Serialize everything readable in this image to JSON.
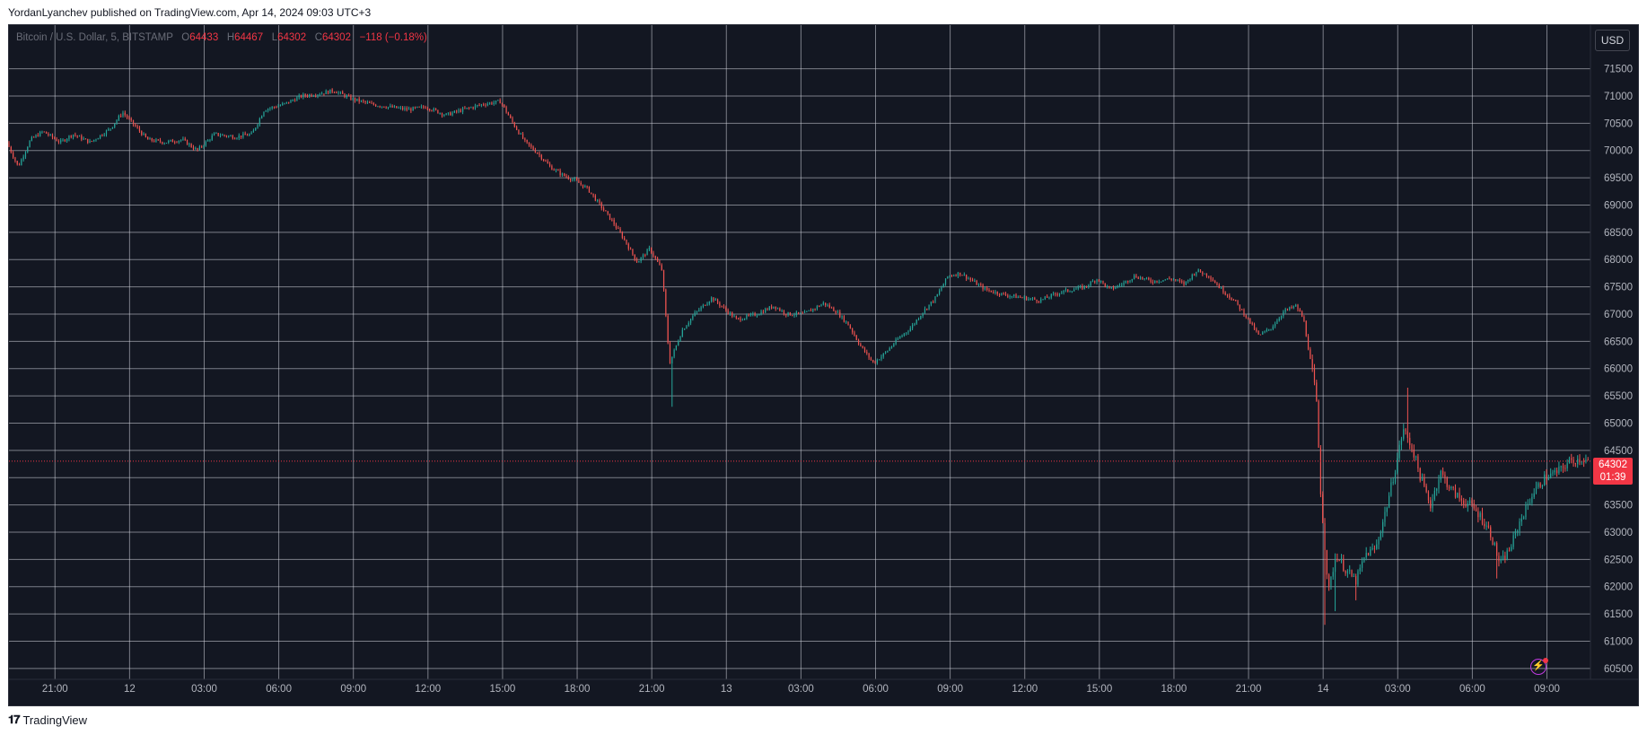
{
  "publisher_line": "YordanLyanchev published on TradingView.com, Apr 14, 2024 09:03 UTC+3",
  "legend": {
    "symbol": "Bitcoin / U.S. Dollar, 5, BITSTAMP",
    "open_label": "O",
    "open": "64433",
    "high_label": "H",
    "high": "64467",
    "low_label": "L",
    "low": "64302",
    "close_label": "C",
    "close": "64302",
    "change": "−118 (−0.18%)"
  },
  "currency_button": "USD",
  "last_price_tag": {
    "price": "64302",
    "countdown": "01:39"
  },
  "footer_brand": "TradingView",
  "colors": {
    "background": "#131722",
    "grid": "#d1d4dc",
    "up": "#26a69a",
    "down": "#ef5350",
    "price_line": "#f23645",
    "axis_text": "#b2b5be"
  },
  "icons": {
    "alert_button": "lightning-icon",
    "footer_logo": "tradingview-logo-icon"
  },
  "chart_data": {
    "type": "candlestick",
    "timeframe": "5",
    "y_axis": {
      "ticks": [
        60500,
        61000,
        61500,
        62000,
        62500,
        63000,
        63500,
        64000,
        64500,
        65000,
        65500,
        66000,
        66500,
        67000,
        67500,
        68000,
        68500,
        69000,
        69500,
        70000,
        70500,
        71000,
        71500
      ],
      "range": [
        60300,
        72300
      ],
      "currency": "USD"
    },
    "x_axis": {
      "tick_labels": [
        "21:00",
        "12",
        "03:00",
        "06:00",
        "09:00",
        "12:00",
        "15:00",
        "18:00",
        "21:00",
        "13",
        "03:00",
        "06:00",
        "09:00",
        "12:00",
        "15:00",
        "18:00",
        "21:00",
        "14",
        "03:00",
        "06:00",
        "09:00"
      ],
      "tick_hours": [
        0,
        3,
        6,
        9,
        12,
        15,
        18,
        21,
        24,
        27,
        30,
        33,
        36,
        39,
        42,
        45,
        48,
        51,
        54,
        57,
        60
      ],
      "range_hours": [
        -1.85,
        61.75
      ],
      "note_origin": "hour 0 = Apr 11 21:00"
    },
    "grid": true,
    "last_price": 64302,
    "price_path": [
      [
        -1.85,
        70150
      ],
      [
        -1.4,
        69700
      ],
      [
        -0.9,
        70200
      ],
      [
        -0.4,
        70350
      ],
      [
        0.3,
        70150
      ],
      [
        0.8,
        70300
      ],
      [
        1.5,
        70150
      ],
      [
        2.3,
        70400
      ],
      [
        2.8,
        70700
      ],
      [
        3.3,
        70450
      ],
      [
        3.8,
        70200
      ],
      [
        4.5,
        70150
      ],
      [
        5.2,
        70200
      ],
      [
        5.8,
        70000
      ],
      [
        6.5,
        70300
      ],
      [
        7.3,
        70250
      ],
      [
        8.0,
        70300
      ],
      [
        8.5,
        70750
      ],
      [
        9.3,
        70850
      ],
      [
        10.0,
        71000
      ],
      [
        10.8,
        71050
      ],
      [
        11.3,
        71100
      ],
      [
        12.0,
        70950
      ],
      [
        12.8,
        70850
      ],
      [
        13.5,
        70800
      ],
      [
        14.3,
        70750
      ],
      [
        15.0,
        70800
      ],
      [
        15.8,
        70650
      ],
      [
        16.5,
        70750
      ],
      [
        17.3,
        70850
      ],
      [
        18.0,
        70900
      ],
      [
        18.5,
        70500
      ],
      [
        19.0,
        70150
      ],
      [
        19.5,
        69950
      ],
      [
        20.0,
        69700
      ],
      [
        20.5,
        69550
      ],
      [
        21.0,
        69450
      ],
      [
        21.5,
        69300
      ],
      [
        22.0,
        69000
      ],
      [
        22.5,
        68700
      ],
      [
        23.0,
        68350
      ],
      [
        23.5,
        67950
      ],
      [
        24.0,
        68200
      ],
      [
        24.5,
        67800
      ],
      [
        24.8,
        66100
      ],
      [
        25.3,
        66700
      ],
      [
        25.8,
        67000
      ],
      [
        26.5,
        67300
      ],
      [
        27.0,
        67100
      ],
      [
        27.5,
        66900
      ],
      [
        28.3,
        67000
      ],
      [
        29.0,
        67150
      ],
      [
        29.5,
        67000
      ],
      [
        30.2,
        67000
      ],
      [
        31.0,
        67200
      ],
      [
        31.5,
        67050
      ],
      [
        32.0,
        66800
      ],
      [
        32.5,
        66400
      ],
      [
        33.0,
        66100
      ],
      [
        33.5,
        66300
      ],
      [
        34.0,
        66550
      ],
      [
        34.5,
        66750
      ],
      [
        35.0,
        67050
      ],
      [
        35.5,
        67300
      ],
      [
        36.0,
        67700
      ],
      [
        36.5,
        67750
      ],
      [
        37.0,
        67600
      ],
      [
        37.5,
        67450
      ],
      [
        38.3,
        67350
      ],
      [
        39.0,
        67300
      ],
      [
        39.7,
        67250
      ],
      [
        40.5,
        67400
      ],
      [
        41.5,
        67500
      ],
      [
        42.0,
        67650
      ],
      [
        42.5,
        67450
      ],
      [
        43.0,
        67550
      ],
      [
        43.5,
        67700
      ],
      [
        44.2,
        67600
      ],
      [
        45.0,
        67650
      ],
      [
        45.5,
        67550
      ],
      [
        46.0,
        67800
      ],
      [
        46.5,
        67700
      ],
      [
        47.0,
        67450
      ],
      [
        47.5,
        67250
      ],
      [
        48.0,
        66950
      ],
      [
        48.5,
        66600
      ],
      [
        49.0,
        66750
      ],
      [
        49.5,
        67050
      ],
      [
        50.0,
        67150
      ],
      [
        50.3,
        66900
      ],
      [
        50.8,
        65500
      ],
      [
        51.0,
        63600
      ],
      [
        51.3,
        61900
      ],
      [
        51.6,
        62600
      ],
      [
        52.0,
        62300
      ],
      [
        52.4,
        62100
      ],
      [
        52.8,
        62600
      ],
      [
        53.2,
        62700
      ],
      [
        53.6,
        63400
      ],
      [
        54.0,
        64200
      ],
      [
        54.3,
        64900
      ],
      [
        54.7,
        64500
      ],
      [
        55.0,
        64000
      ],
      [
        55.4,
        63500
      ],
      [
        55.8,
        64100
      ],
      [
        56.2,
        63800
      ],
      [
        56.6,
        63600
      ],
      [
        57.0,
        63500
      ],
      [
        57.4,
        63300
      ],
      [
        57.8,
        63000
      ],
      [
        58.2,
        62400
      ],
      [
        58.6,
        62700
      ],
      [
        59.0,
        63200
      ],
      [
        59.5,
        63700
      ],
      [
        60.0,
        64000
      ],
      [
        60.5,
        64100
      ],
      [
        61.0,
        64300
      ],
      [
        61.5,
        64350
      ],
      [
        61.75,
        64302
      ]
    ],
    "notable_extremes": {
      "high": 71200,
      "low_day1": 65300,
      "low_day2": 61300,
      "rebound_high": 65600
    }
  }
}
